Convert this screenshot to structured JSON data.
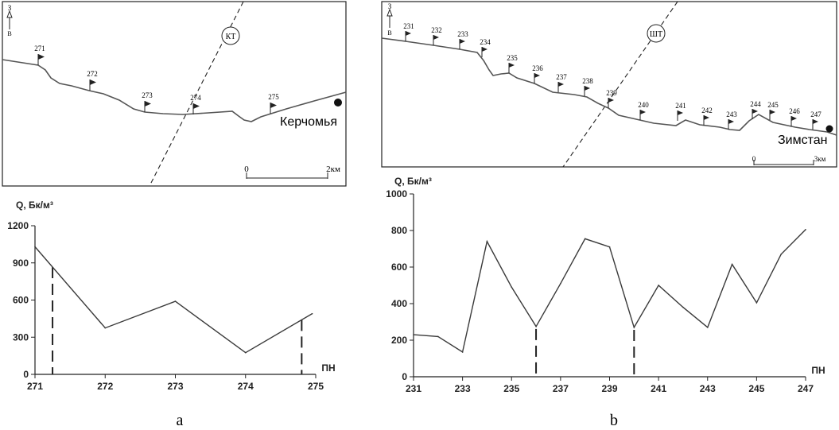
{
  "panel_a": {
    "map": {
      "compass_north": "З",
      "compass_south": "В",
      "fault_label": "КТ",
      "village": "Керчомья",
      "scale_start": "0",
      "scale_end": "2км",
      "pickets": [
        "271",
        "272",
        "273",
        "274",
        "275"
      ]
    },
    "caption": "а"
  },
  "panel_b": {
    "map": {
      "compass_north": "З",
      "compass_south": "В",
      "fault_label": "ШТ",
      "village": "Зимстан",
      "scale_start": "0",
      "scale_end": "3км",
      "pickets": [
        "231",
        "232",
        "233",
        "234",
        "235",
        "236",
        "237",
        "238",
        "239",
        "240",
        "241",
        "242",
        "243",
        "244",
        "245",
        "246",
        "247"
      ]
    },
    "caption": "b"
  },
  "chart_data": [
    {
      "type": "line",
      "ylabel": "Q, Бк/м³",
      "xlabel": "ПН",
      "x": [
        271.0,
        272.0,
        273.0,
        274.0,
        274.95
      ],
      "y": [
        1030,
        375,
        590,
        175,
        490
      ],
      "xlim": [
        271,
        275
      ],
      "ylim": [
        0,
        1200
      ],
      "xticks": [
        "271",
        "272",
        "273",
        "274",
        "275"
      ],
      "yticks": [
        "0",
        "300",
        "600",
        "900",
        "1200"
      ],
      "fault_markers_x": [
        271.25,
        274.8
      ],
      "color": "#3a3a3a",
      "grid": false
    },
    {
      "type": "line",
      "ylabel": "Q, Бк/м³",
      "xlabel": "ПН",
      "x": [
        231,
        232,
        233,
        234,
        235,
        236,
        237,
        238,
        239,
        240,
        241,
        242,
        243,
        244,
        245,
        246,
        247
      ],
      "y": [
        230,
        220,
        135,
        740,
        490,
        275,
        510,
        755,
        710,
        270,
        500,
        380,
        270,
        615,
        405,
        670,
        805
      ],
      "xlim": [
        231,
        247
      ],
      "ylim": [
        0,
        1000
      ],
      "xticks": [
        "231",
        "233",
        "235",
        "237",
        "239",
        "241",
        "243",
        "245",
        "247"
      ],
      "yticks": [
        "0",
        "200",
        "400",
        "600",
        "800",
        "1000"
      ],
      "fault_markers_x": [
        236,
        240
      ],
      "color": "#3a3a3a",
      "grid": false
    }
  ]
}
